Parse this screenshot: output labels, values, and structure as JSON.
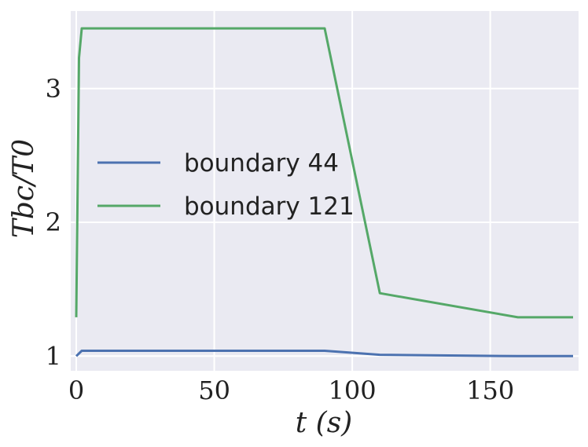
{
  "chart_data": {
    "type": "line",
    "title": "",
    "xlabel": "t   (s)",
    "ylabel": "Tbc/T0",
    "xlim": [
      -2,
      182
    ],
    "ylim": [
      0.89,
      3.58
    ],
    "xticks": [
      0,
      50,
      100,
      150
    ],
    "yticks": [
      1,
      2,
      3
    ],
    "grid": true,
    "legend_position": "center-left",
    "series": [
      {
        "name": "boundary 44",
        "color": "#4c72b0",
        "x": [
          0,
          2,
          90,
          110,
          160,
          180
        ],
        "y": [
          1.0,
          1.04,
          1.04,
          1.01,
          1.0,
          1.0
        ]
      },
      {
        "name": "boundary 121",
        "color": "#55a868",
        "x": [
          0,
          1,
          2,
          90,
          110,
          160,
          180
        ],
        "y": [
          1.29,
          3.23,
          3.45,
          3.45,
          1.47,
          1.29,
          1.29
        ]
      }
    ],
    "colors": {
      "plot_background": "#eaeaf2",
      "grid": "#ffffff"
    }
  }
}
